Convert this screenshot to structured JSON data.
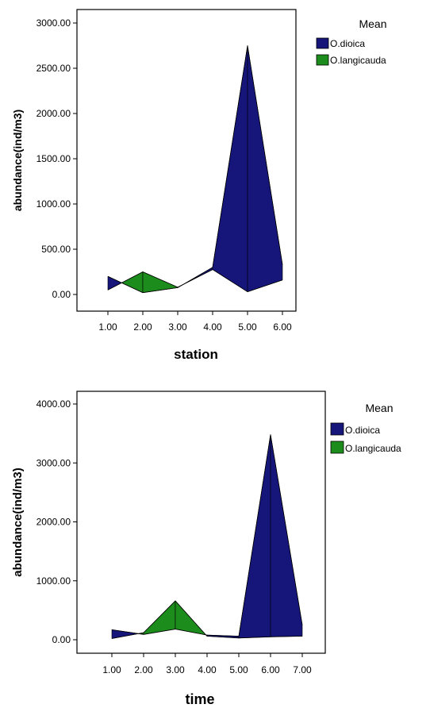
{
  "chart_data": [
    {
      "type": "area",
      "xlabel": "station",
      "ylabel": "abundance(ind/m3)",
      "x": [
        1,
        2,
        3,
        4,
        5,
        6
      ],
      "x_tick_labels": [
        "1.00",
        "2.00",
        "3.00",
        "4.00",
        "5.00",
        "6.00"
      ],
      "ylim": [
        0,
        3000
      ],
      "y_ticks": [
        0,
        500,
        1000,
        1500,
        2000,
        2500,
        3000
      ],
      "y_tick_labels": [
        "0.00",
        "500.00",
        "1000.00",
        "1500.00",
        "2000.00",
        "2500.00",
        "3000.00"
      ],
      "grid": false,
      "legend": {
        "title": "Mean",
        "position": "top-right"
      },
      "series": [
        {
          "name": "O.dioica",
          "color": "#15157a",
          "values": [
            200,
            20,
            75,
            300,
            2750,
            330
          ]
        },
        {
          "name": "O.langicauda",
          "color": "#1c8c1c",
          "values": [
            50,
            250,
            80,
            275,
            30,
            160
          ]
        }
      ]
    },
    {
      "type": "area",
      "xlabel": "time",
      "ylabel": "abundance(ind/m3)",
      "x": [
        1,
        2,
        3,
        4,
        5,
        6,
        7
      ],
      "x_tick_labels": [
        "1.00",
        "2.00",
        "3.00",
        "4.00",
        "5.00",
        "6.00",
        "7.00"
      ],
      "ylim": [
        0,
        4000
      ],
      "y_ticks": [
        0,
        1000,
        2000,
        3000,
        4000
      ],
      "y_tick_labels": [
        "0.00",
        "1000.00",
        "2000.00",
        "3000.00",
        "4000.00"
      ],
      "grid": false,
      "legend": {
        "title": "Mean",
        "position": "top-right"
      },
      "series": [
        {
          "name": "O.dioica",
          "color": "#15157a",
          "values": [
            170,
            90,
            180,
            80,
            60,
            3480,
            250
          ]
        },
        {
          "name": "O.langicauda",
          "color": "#1c8c1c",
          "values": [
            20,
            120,
            660,
            60,
            30,
            50,
            60
          ]
        }
      ]
    }
  ]
}
